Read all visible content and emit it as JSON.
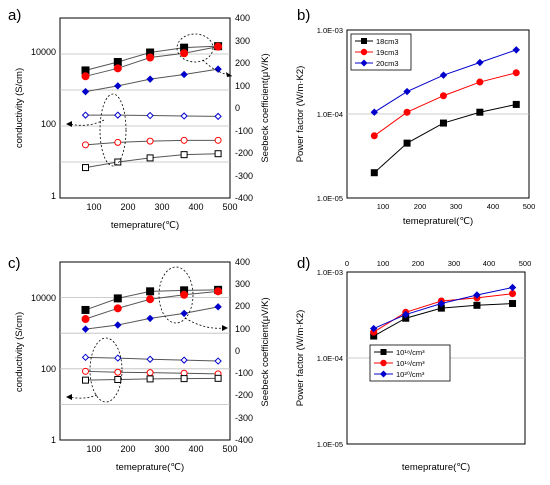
{
  "chart_data": [
    {
      "id": "a",
      "type": "scatter",
      "panel_label": "a)",
      "xlabel": "temeprature(℃)",
      "ylabel": "conductivity (S/cm)",
      "y2label": "Seebeck coefficient(μV/K)",
      "x_ticks": [
        "100",
        "200",
        "300",
        "400",
        "500"
      ],
      "xlim": [
        0,
        500
      ],
      "y_ticks": [
        "1",
        "100",
        "10000"
      ],
      "ylim_log10": [
        0,
        5
      ],
      "y_scale": "log",
      "y2_ticks": [
        "400",
        "300",
        "200",
        "100",
        "0",
        "-100",
        "-200",
        "-300",
        "-400"
      ],
      "y2lim": [
        -400,
        400
      ],
      "grid": true,
      "series": [
        {
          "axis": "left",
          "marker": "square",
          "filled": true,
          "color": "#000000",
          "size": 7,
          "x": [
            75,
            170,
            265,
            365,
            465
          ],
          "y": [
            3500,
            6000,
            11000,
            15000,
            16500
          ]
        },
        {
          "axis": "left",
          "marker": "circle",
          "filled": true,
          "color": "#ff0000",
          "size": 7,
          "x": [
            75,
            170,
            265,
            365,
            465
          ],
          "y": [
            2400,
            4000,
            8000,
            10500,
            16000
          ]
        },
        {
          "axis": "left",
          "marker": "diamond",
          "filled": true,
          "color": "#0000cc",
          "size": 5,
          "x": [
            75,
            170,
            265,
            365,
            465
          ],
          "y": [
            900,
            1300,
            2000,
            2700,
            3800
          ]
        },
        {
          "axis": "left",
          "marker": "diamond",
          "filled": false,
          "color": "#0000cc",
          "size": 5,
          "x": [
            75,
            170,
            265,
            365,
            465
          ],
          "y": [
            200,
            200,
            195,
            190,
            185
          ]
        },
        {
          "axis": "left",
          "marker": "circle",
          "filled": false,
          "color": "#ff0000",
          "size": 6,
          "x": [
            75,
            170,
            265,
            365,
            465
          ],
          "y": [
            30,
            35,
            38,
            40,
            40
          ]
        },
        {
          "axis": "left",
          "marker": "square",
          "filled": false,
          "color": "#000000",
          "size": 6,
          "x": [
            75,
            170,
            265,
            365,
            465
          ],
          "y": [
            7,
            10,
            13,
            16,
            17
          ]
        }
      ]
    },
    {
      "id": "b",
      "type": "line",
      "panel_label": "b)",
      "xlabel": "temepraturel(℃)",
      "ylabel": "Power factor (W/m·K2)",
      "x_ticks": [
        "100",
        "200",
        "300",
        "400",
        "500"
      ],
      "xlim": [
        0,
        500
      ],
      "y_ticks": [
        "1.0E-05",
        "1.0E-04",
        "1.0E-03"
      ],
      "ylim_log10": [
        -5,
        -3
      ],
      "y_scale": "log",
      "grid": true,
      "legend_position": "top-left",
      "series": [
        {
          "name": "18cm3",
          "marker": "square",
          "filled": true,
          "color": "#000000",
          "size": 6,
          "x": [
            75,
            165,
            265,
            365,
            465
          ],
          "y": [
            2e-05,
            4.5e-05,
            7.8e-05,
            0.000105,
            0.00013
          ]
        },
        {
          "name": "19cm3",
          "marker": "circle",
          "filled": true,
          "color": "#ff0000",
          "size": 6,
          "x": [
            75,
            165,
            265,
            365,
            465
          ],
          "y": [
            5.5e-05,
            0.000105,
            0.000165,
            0.00024,
            0.00031
          ]
        },
        {
          "name": "20cm3",
          "marker": "diamond",
          "filled": true,
          "color": "#0000cc",
          "size": 5,
          "x": [
            75,
            165,
            265,
            365,
            465
          ],
          "y": [
            0.000105,
            0.000185,
            0.00029,
            0.00041,
            0.00058
          ]
        }
      ]
    },
    {
      "id": "c",
      "type": "scatter",
      "panel_label": "c)",
      "xlabel": "temeprature(℃)",
      "ylabel": "conductivity (S/cm)",
      "y2label": "Seebeck coefficient(μV/K)",
      "x_ticks": [
        "100",
        "200",
        "300",
        "400",
        "500"
      ],
      "xlim": [
        0,
        500
      ],
      "y_ticks": [
        "1",
        "100",
        "10000"
      ],
      "ylim_log10": [
        0,
        5
      ],
      "y_scale": "log",
      "y2_ticks": [
        "400",
        "300",
        "200",
        "100",
        "0",
        "-100",
        "-200",
        "-300",
        "-400"
      ],
      "y2lim": [
        -400,
        400
      ],
      "grid": true,
      "series": [
        {
          "axis": "left",
          "marker": "square",
          "filled": true,
          "color": "#000000",
          "size": 7,
          "x": [
            75,
            170,
            265,
            365,
            465
          ],
          "y": [
            4500,
            9500,
            15000,
            16000,
            16500
          ]
        },
        {
          "axis": "left",
          "marker": "circle",
          "filled": true,
          "color": "#ff0000",
          "size": 7,
          "x": [
            75,
            170,
            265,
            365,
            465
          ],
          "y": [
            2500,
            5000,
            9000,
            12000,
            15000
          ]
        },
        {
          "axis": "left",
          "marker": "diamond",
          "filled": true,
          "color": "#0000cc",
          "size": 5,
          "x": [
            75,
            170,
            265,
            365,
            465
          ],
          "y": [
            1300,
            1700,
            2600,
            3600,
            5500
          ]
        },
        {
          "axis": "left",
          "marker": "diamond",
          "filled": false,
          "color": "#0000cc",
          "size": 5,
          "x": [
            75,
            170,
            265,
            365,
            465
          ],
          "y": [
            210,
            200,
            185,
            175,
            165
          ]
        },
        {
          "axis": "left",
          "marker": "circle",
          "filled": false,
          "color": "#ff0000",
          "size": 6,
          "x": [
            75,
            170,
            265,
            365,
            465
          ],
          "y": [
            85,
            80,
            78,
            75,
            72
          ]
        },
        {
          "axis": "left",
          "marker": "square",
          "filled": false,
          "color": "#000000",
          "size": 6,
          "x": [
            75,
            170,
            265,
            365,
            465
          ],
          "y": [
            48,
            50,
            52,
            53,
            54
          ]
        }
      ]
    },
    {
      "id": "d",
      "type": "line",
      "panel_label": "d)",
      "xlabel": "temeprature(℃)",
      "ylabel": "Power factor (W/m·K2)",
      "x_ticks": [
        "0",
        "100",
        "200",
        "300",
        "400",
        "500"
      ],
      "xlim": [
        0,
        500
      ],
      "x_axis_position": "top",
      "y_ticks": [
        "1.0E-05",
        "1.0E-04",
        "1.0E-03"
      ],
      "ylim_log10": [
        -5,
        -3
      ],
      "y_scale": "log",
      "grid": true,
      "legend_position": "center",
      "series": [
        {
          "name": "10¹⁸/cm³",
          "marker": "square",
          "filled": true,
          "color": "#000000",
          "size": 6,
          "x": [
            75,
            165,
            265,
            365,
            465
          ],
          "y": [
            0.00018,
            0.00029,
            0.00038,
            0.00041,
            0.00043
          ]
        },
        {
          "name": "10¹⁹/cm³",
          "marker": "circle",
          "filled": true,
          "color": "#ff0000",
          "size": 6,
          "x": [
            75,
            165,
            265,
            365,
            465
          ],
          "y": [
            0.0002,
            0.00034,
            0.00046,
            0.0005,
            0.00056
          ]
        },
        {
          "name": "10²⁰/cm³",
          "marker": "diamond",
          "filled": true,
          "color": "#0000cc",
          "size": 5,
          "x": [
            75,
            165,
            265,
            365,
            465
          ],
          "y": [
            0.00022,
            0.00032,
            0.00043,
            0.00054,
            0.00066
          ]
        }
      ]
    }
  ]
}
